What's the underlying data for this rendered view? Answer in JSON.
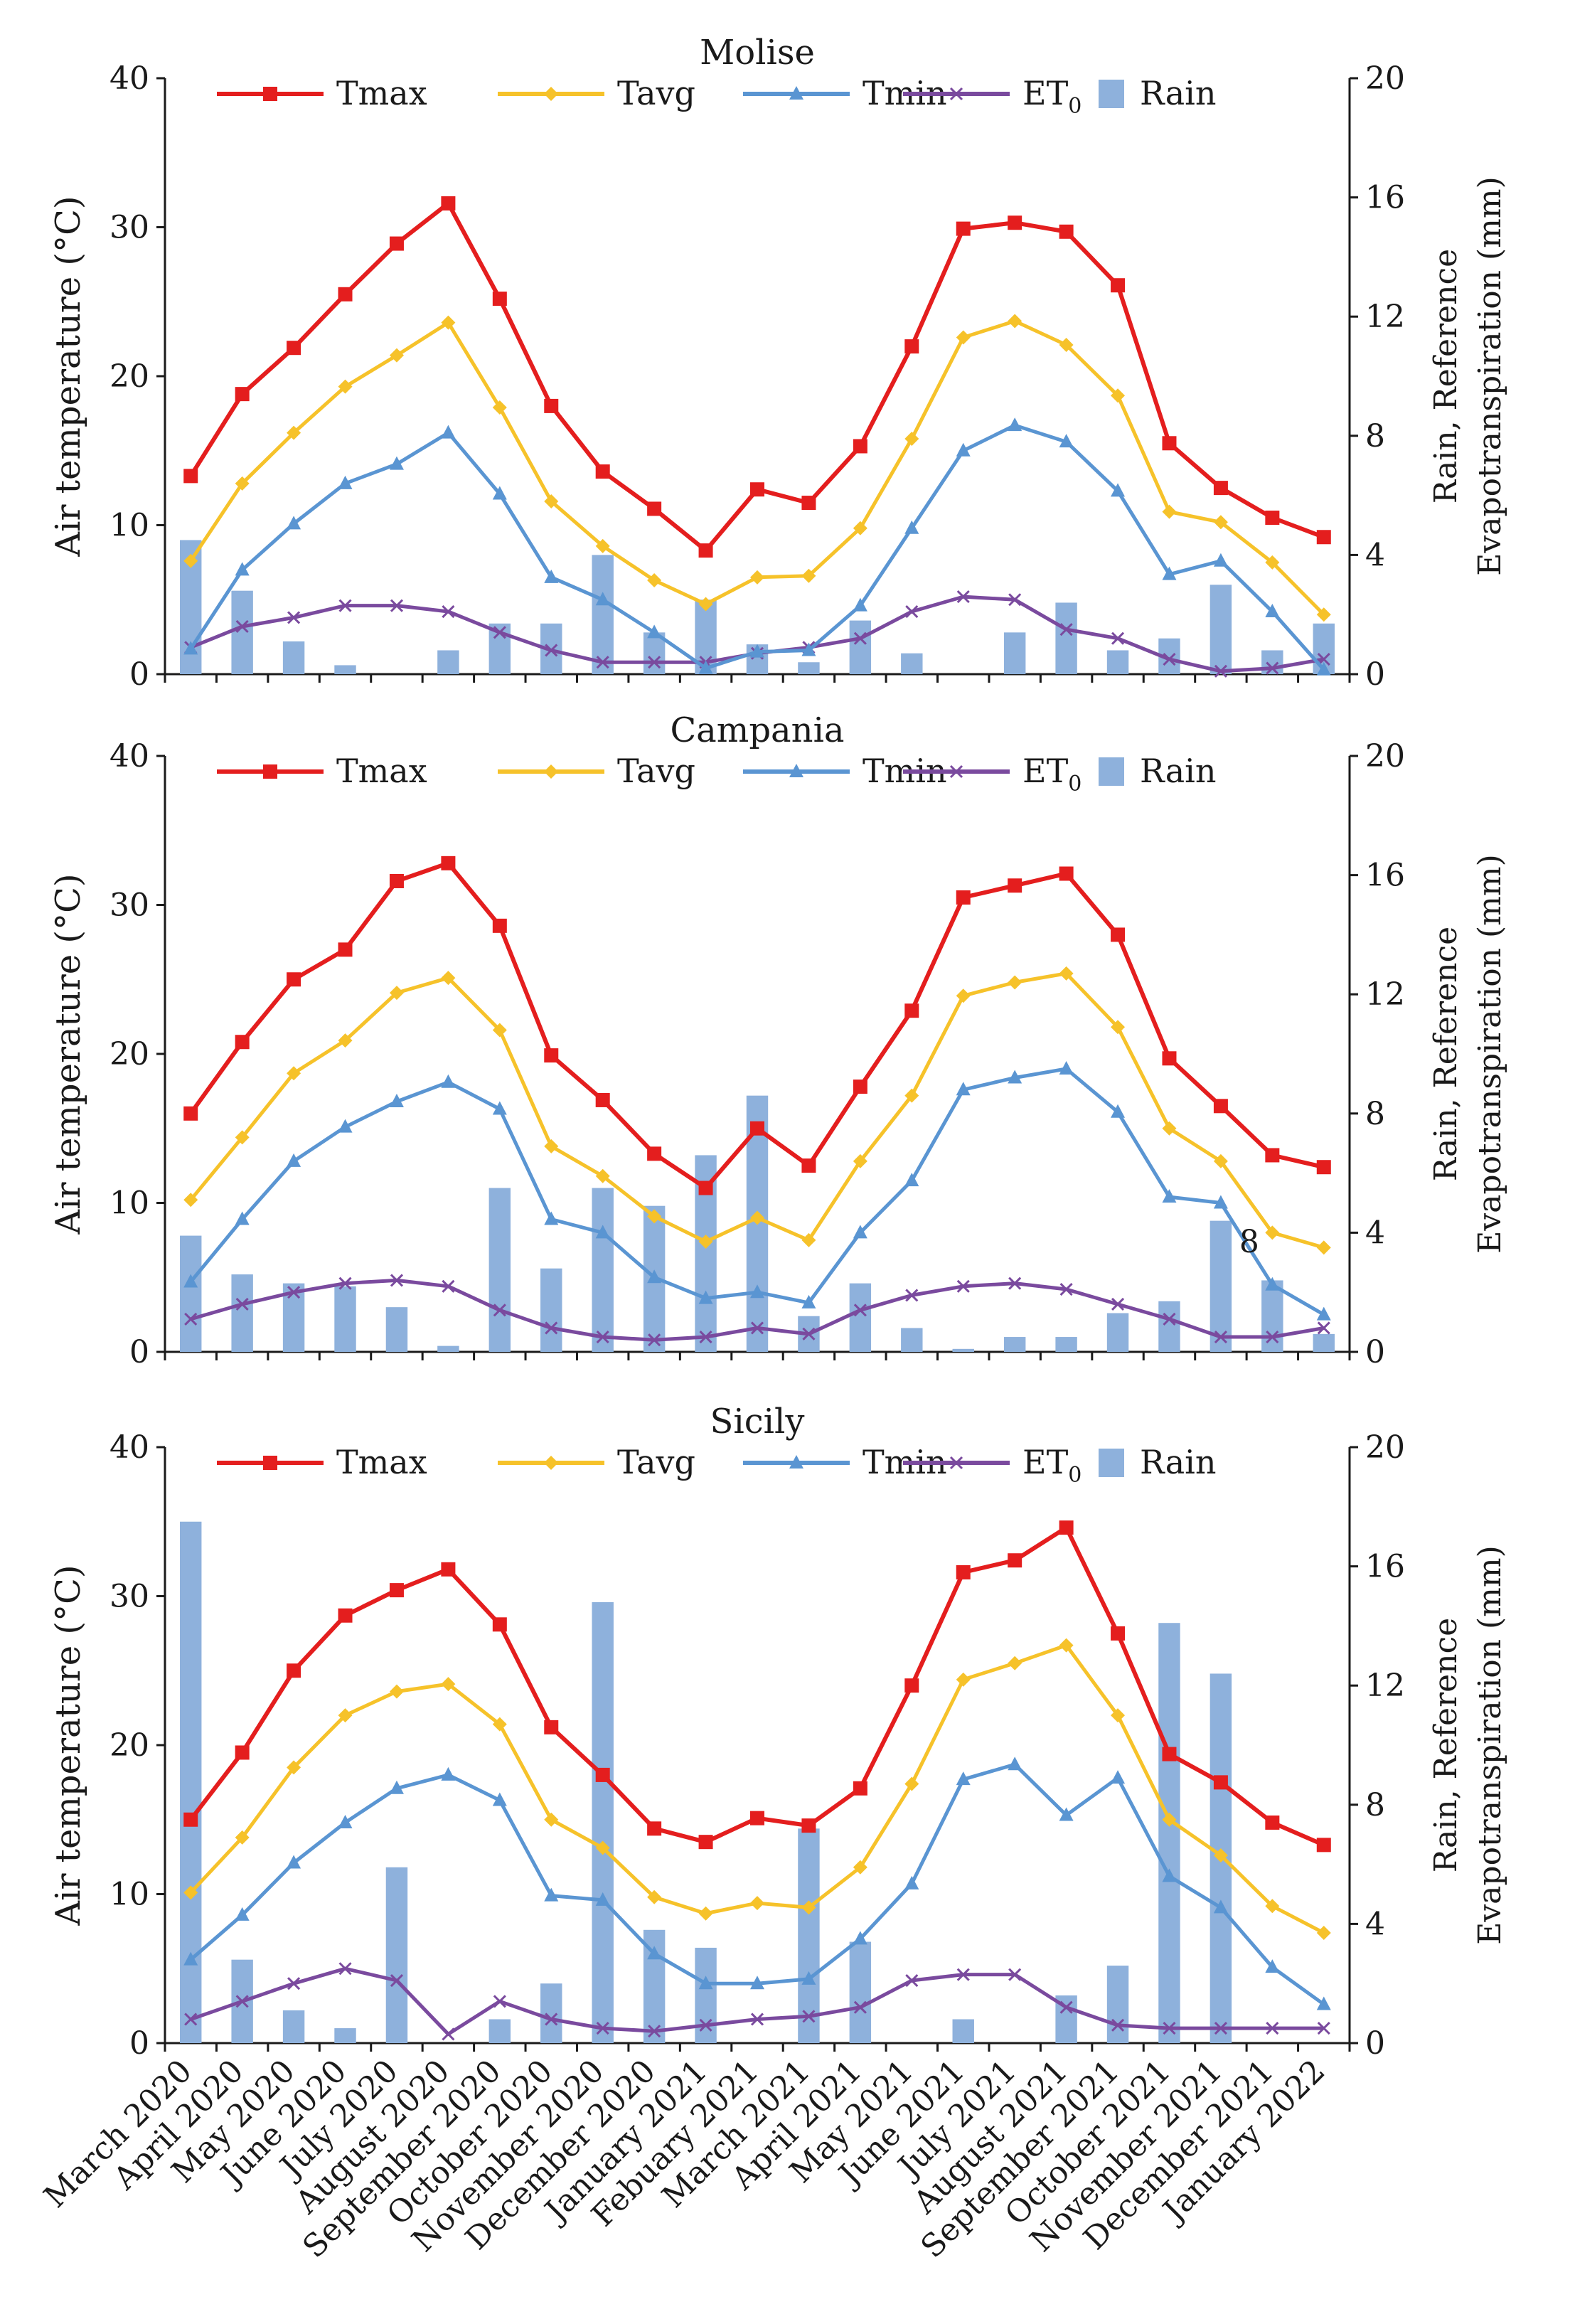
{
  "x_tick_labels": [
    "March 2020",
    "April 2020",
    "May 2020",
    "June 2020",
    "July 2020",
    "August 2020",
    "September 2020",
    "October 2020",
    "November 2020",
    "December 2020",
    "January 2021",
    "Febuary 2021",
    "March 2021",
    "April 2021",
    "May 2021",
    "June 2021",
    "July 2021",
    "August 2021",
    "September 2021",
    "October 2021",
    "November 2021",
    "December 2021",
    "January 2022"
  ],
  "legend_labels": {
    "tmax": "Tmax",
    "tavg": "Tavg",
    "tmin": "Tmin",
    "et0": "ET0",
    "rain": "Rain"
  },
  "colors": {
    "tmax": "#e41e1e",
    "tavg": "#f6c22a",
    "tmin": "#5a95d2",
    "et0": "#7a4a9e",
    "rain": "#8eb1dc",
    "axis": "#1a1a1a"
  },
  "chart_data": [
    {
      "type": "line",
      "title": "Molise",
      "ylabel": "Air temperature (°C)",
      "y2label": [
        "Rain, Reference",
        "Evapotranspiration (mm)"
      ],
      "ylim": [
        0,
        40
      ],
      "y2lim": [
        0,
        20
      ],
      "yticks": [
        "0",
        "10",
        "20",
        "30",
        "40"
      ],
      "y2ticks": [
        "0",
        "4",
        "8",
        "12",
        "16",
        "20"
      ],
      "note": "",
      "series": [
        {
          "name": "Tmax",
          "key": "tmax",
          "axis": "left",
          "values": [
            13.3,
            18.8,
            21.9,
            25.5,
            28.9,
            31.6,
            25.2,
            18.0,
            13.6,
            11.1,
            8.3,
            12.4,
            11.5,
            15.3,
            22.0,
            29.9,
            30.3,
            29.7,
            26.1,
            15.5,
            12.5,
            10.5,
            9.2
          ]
        },
        {
          "name": "Tavg",
          "key": "tavg",
          "axis": "left",
          "values": [
            7.6,
            12.8,
            16.2,
            19.3,
            21.4,
            23.6,
            17.9,
            11.6,
            8.6,
            6.3,
            4.7,
            6.5,
            6.6,
            9.8,
            15.8,
            22.6,
            23.7,
            22.1,
            18.7,
            10.9,
            10.2,
            7.5,
            4.0
          ]
        },
        {
          "name": "Tmin",
          "key": "tmin",
          "axis": "left",
          "values": [
            1.7,
            7.0,
            10.1,
            12.8,
            14.1,
            16.2,
            12.1,
            6.5,
            5.0,
            2.8,
            0.4,
            1.5,
            1.6,
            4.6,
            9.8,
            15.0,
            16.7,
            15.6,
            12.3,
            6.7,
            7.6,
            4.2,
            0.3
          ]
        },
        {
          "name": "ET0",
          "key": "et0",
          "axis": "right",
          "values": [
            0.9,
            1.6,
            1.9,
            2.3,
            2.3,
            2.1,
            1.4,
            0.8,
            0.4,
            0.4,
            0.4,
            0.7,
            0.9,
            1.2,
            2.1,
            2.6,
            2.5,
            1.5,
            1.2,
            0.5,
            0.1,
            0.2,
            0.5
          ]
        },
        {
          "name": "Rain",
          "key": "rain",
          "axis": "right",
          "type": "bar",
          "values": [
            4.5,
            2.8,
            1.1,
            0.3,
            0,
            0.8,
            1.7,
            1.7,
            4.0,
            1.4,
            2.5,
            1.0,
            0.4,
            1.8,
            0.7,
            0,
            1.4,
            2.4,
            0.8,
            1.2,
            3.0,
            0.8,
            1.7
          ]
        }
      ]
    },
    {
      "type": "line",
      "title": "Campania",
      "ylabel": "Air temperature (°C)",
      "y2label": [
        "Rain, Reference",
        "Evapotranspiration (mm)"
      ],
      "ylim": [
        0,
        40
      ],
      "y2lim": [
        0,
        20
      ],
      "yticks": [
        "0",
        "10",
        "20",
        "30",
        "40"
      ],
      "y2ticks": [
        "0",
        "4",
        "8",
        "12",
        "16",
        "20"
      ],
      "note": "8",
      "series": [
        {
          "name": "Tmax",
          "key": "tmax",
          "axis": "left",
          "values": [
            16.0,
            20.8,
            25.0,
            27.0,
            31.6,
            32.8,
            28.6,
            19.9,
            16.9,
            13.3,
            11.0,
            15.0,
            12.5,
            17.8,
            22.9,
            30.5,
            31.3,
            32.1,
            28.0,
            19.7,
            16.5,
            13.2,
            12.4
          ]
        },
        {
          "name": "Tavg",
          "key": "tavg",
          "axis": "left",
          "values": [
            10.2,
            14.4,
            18.7,
            20.9,
            24.1,
            25.1,
            21.6,
            13.8,
            11.8,
            9.1,
            7.4,
            9.0,
            7.5,
            12.8,
            17.2,
            23.9,
            24.8,
            25.4,
            21.8,
            15.0,
            12.8,
            8.0,
            7.0
          ]
        },
        {
          "name": "Tmin",
          "key": "tmin",
          "axis": "left",
          "values": [
            4.7,
            8.9,
            12.8,
            15.1,
            16.8,
            18.1,
            16.3,
            8.9,
            8.0,
            5.0,
            3.6,
            4.0,
            3.3,
            8.0,
            11.5,
            17.6,
            18.4,
            19.0,
            16.1,
            10.4,
            10.0,
            4.5,
            2.5
          ]
        },
        {
          "name": "ET0",
          "key": "et0",
          "axis": "right",
          "values": [
            1.1,
            1.6,
            2.0,
            2.3,
            2.4,
            2.2,
            1.4,
            0.8,
            0.5,
            0.4,
            0.5,
            0.8,
            0.6,
            1.4,
            1.9,
            2.2,
            2.3,
            2.1,
            1.6,
            1.1,
            0.5,
            0.5,
            0.8
          ]
        },
        {
          "name": "Rain",
          "key": "rain",
          "axis": "right",
          "type": "bar",
          "values": [
            3.9,
            2.6,
            2.3,
            2.2,
            1.5,
            0.2,
            5.5,
            2.8,
            5.5,
            4.9,
            6.6,
            8.6,
            1.2,
            2.3,
            0.8,
            0.1,
            0.5,
            0.5,
            1.3,
            1.7,
            4.4,
            2.4,
            0.6
          ]
        }
      ]
    },
    {
      "type": "line",
      "title": "Sicily",
      "ylabel": "Air temperature (°C)",
      "y2label": [
        "Rain, Reference",
        "Evapotranspiration (mm)"
      ],
      "ylim": [
        0,
        40
      ],
      "y2lim": [
        0,
        20
      ],
      "yticks": [
        "0",
        "10",
        "20",
        "30",
        "40"
      ],
      "y2ticks": [
        "0",
        "4",
        "8",
        "12",
        "16",
        "20"
      ],
      "note": "",
      "series": [
        {
          "name": "Tmax",
          "key": "tmax",
          "axis": "left",
          "values": [
            15.0,
            19.5,
            25.0,
            28.7,
            30.4,
            31.8,
            28.1,
            21.2,
            18.0,
            14.4,
            13.5,
            15.1,
            14.6,
            17.1,
            24.0,
            31.6,
            32.4,
            34.6,
            27.5,
            19.4,
            17.5,
            14.8,
            13.3
          ]
        },
        {
          "name": "Tavg",
          "key": "tavg",
          "axis": "left",
          "values": [
            10.1,
            13.8,
            18.5,
            22.0,
            23.6,
            24.1,
            21.4,
            15.0,
            13.1,
            9.8,
            8.7,
            9.4,
            9.1,
            11.8,
            17.4,
            24.4,
            25.5,
            26.7,
            22.0,
            15.0,
            12.6,
            9.2,
            7.4
          ]
        },
        {
          "name": "Tmin",
          "key": "tmin",
          "axis": "left",
          "values": [
            5.6,
            8.6,
            12.1,
            14.8,
            17.1,
            18.0,
            16.3,
            9.9,
            9.6,
            6.0,
            4.0,
            4.0,
            4.3,
            7.0,
            10.7,
            17.7,
            18.7,
            15.3,
            17.8,
            11.2,
            9.1,
            5.1,
            2.6
          ]
        },
        {
          "name": "ET0",
          "key": "et0",
          "axis": "right",
          "values": [
            0.8,
            1.4,
            2.0,
            2.5,
            2.1,
            0.3,
            1.4,
            0.8,
            0.5,
            0.4,
            0.6,
            0.8,
            0.9,
            1.2,
            2.1,
            2.3,
            2.3,
            1.2,
            0.6,
            0.5,
            0.5,
            0.5,
            0.5
          ]
        },
        {
          "name": "Rain",
          "key": "rain",
          "axis": "right",
          "type": "bar",
          "values": [
            17.5,
            2.8,
            1.1,
            0.5,
            5.9,
            0,
            0.8,
            2.0,
            14.8,
            3.8,
            3.2,
            0,
            7.2,
            3.4,
            0,
            0.8,
            0,
            1.6,
            2.6,
            14.1,
            12.4,
            0,
            0
          ]
        }
      ]
    }
  ]
}
